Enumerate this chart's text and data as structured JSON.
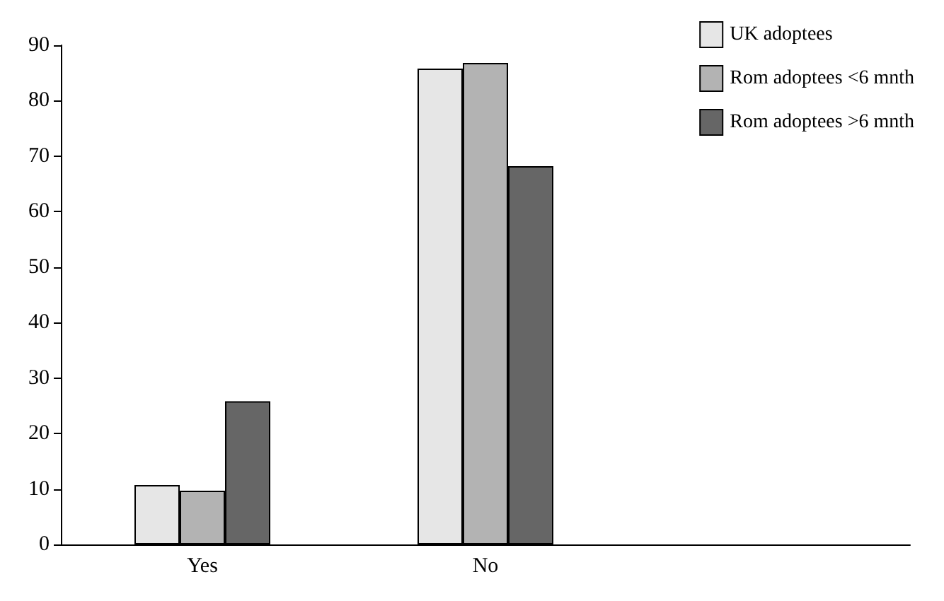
{
  "chart_data": {
    "type": "bar",
    "categories": [
      "Yes",
      "No",
      null
    ],
    "series": [
      {
        "name": "UK adoptees",
        "color": "#e6e6e6",
        "values": [
          10.7,
          85.8,
          null
        ]
      },
      {
        "name": "Rom adoptees <6 mnth",
        "color": "#b3b3b3",
        "values": [
          9.7,
          86.8,
          null
        ]
      },
      {
        "name": "Rom adoptees >6 mnth",
        "color": "#666666",
        "values": [
          25.8,
          68.2,
          null
        ]
      }
    ],
    "ylim": [
      0,
      90
    ],
    "yticks": [
      0,
      10,
      20,
      30,
      40,
      50,
      60,
      70,
      80,
      90
    ],
    "grid": false,
    "legend": "top right"
  }
}
